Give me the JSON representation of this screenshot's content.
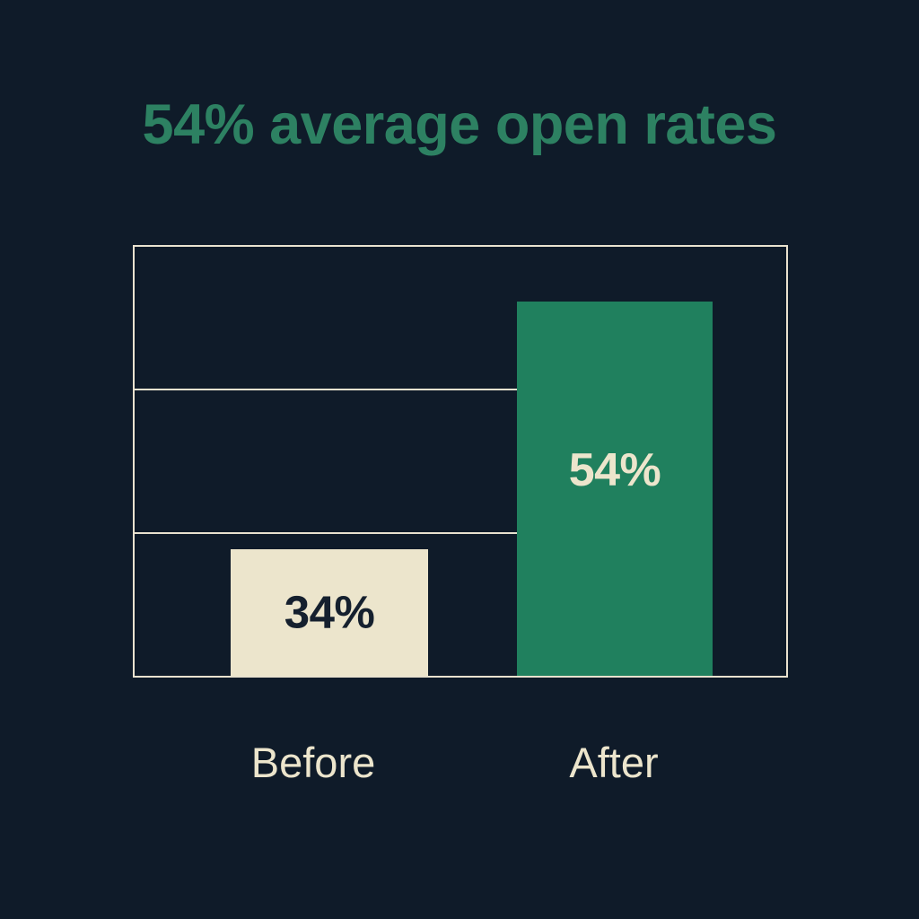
{
  "title": "54% average open rates",
  "chart_data": {
    "type": "bar",
    "title": "54% average open rates",
    "categories": [
      "Before",
      "After"
    ],
    "values": [
      34,
      54
    ],
    "value_labels": [
      "34%",
      "54%"
    ],
    "unit": "%",
    "grid": true,
    "gridline_count": 2,
    "gridline_orientation": "horizontal",
    "legend": false,
    "axis_tick_labels": false,
    "value_label_position": "inside-bar"
  },
  "colors": {
    "background": "#0f1b29",
    "title_text": "#2d8162",
    "bar_before_fill": "#ece5cc",
    "bar_after_fill": "#20805e",
    "value_before_text": "#15202e",
    "value_after_text": "#ece5cc",
    "frame_border": "#e9e2cf",
    "gridline": "#e9e2cf",
    "category_label_text": "#ece5cc"
  }
}
